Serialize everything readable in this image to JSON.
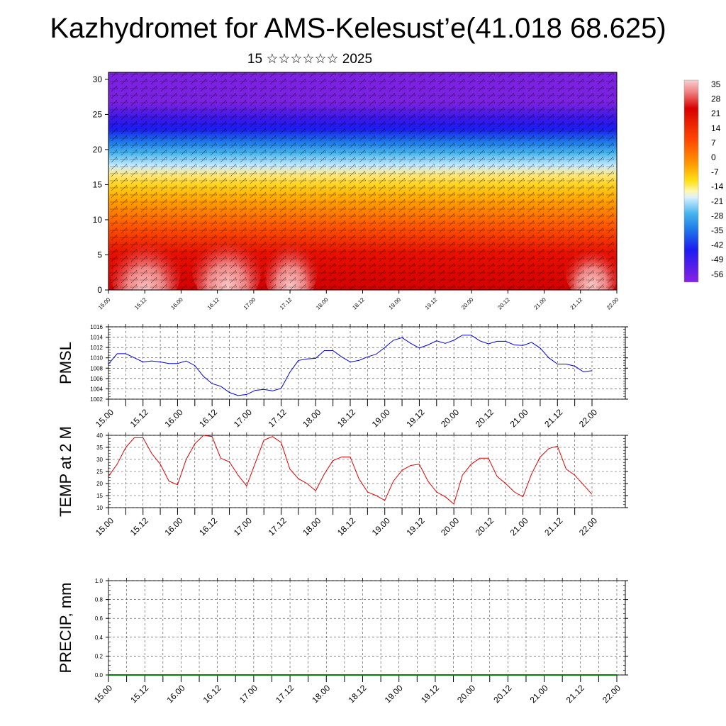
{
  "title": "Kazhydromet for AMS-Kelesust’e(41.018 68.625)",
  "subtitle": "15 ☆☆☆☆☆☆ 2025",
  "time_labels": [
    "15.00",
    "15.12",
    "16.00",
    "16.12",
    "17.00",
    "17.12",
    "18.00",
    "18.12",
    "19.00",
    "19.12",
    "20.00",
    "20.12",
    "21.00",
    "21.12",
    "22.00"
  ],
  "chart_data": [
    {
      "type": "heatmap",
      "name": "cross-section",
      "y_ticks": [
        "0",
        "5",
        "10",
        "15",
        "20",
        "25",
        "30"
      ],
      "ylim": [
        0,
        31
      ],
      "x_ticks": [
        "15.00",
        "15.12",
        "16.00",
        "16.12",
        "17.00",
        "17.12",
        "18.00",
        "18.12",
        "19.00",
        "19.12",
        "20.00",
        "20.12",
        "21.00",
        "21.12",
        "22.00"
      ],
      "colorbar_labels": [
        "35",
        "28",
        "21",
        "14",
        "7",
        "0",
        "-7",
        "-14",
        "-21",
        "-28",
        "-35",
        "-42",
        "-49",
        "-56"
      ],
      "colors": {
        "warm": "#d40000",
        "hot": "#f4a6a6",
        "neutral": "#ffe11a",
        "cool": "#46b4ee",
        "cold": "#1c1cf0",
        "coldest": "#7a22e0"
      },
      "overlay": "wind barbs"
    },
    {
      "type": "line",
      "name": "PMSL",
      "ylabel": "PMSL",
      "ylim": [
        1002,
        1016
      ],
      "y_ticks": [
        "1002",
        "1004",
        "1006",
        "1008",
        "1010",
        "1012",
        "1014",
        "1016"
      ],
      "x_ticks": [
        "15.00",
        "15.12",
        "16.00",
        "16.12",
        "17.00",
        "17.12",
        "18.00",
        "18.12",
        "19.00",
        "19.12",
        "20.00",
        "20.12",
        "21.00",
        "21.12",
        "22.00"
      ],
      "x": [
        0,
        3,
        6,
        9,
        12,
        15,
        18,
        21,
        24,
        27,
        30,
        33,
        36,
        39,
        42,
        45,
        48,
        51,
        54,
        57,
        60,
        63,
        66,
        69,
        72,
        75,
        78,
        81,
        84,
        87,
        90,
        93,
        96,
        99,
        102,
        105,
        108,
        111,
        114,
        117,
        120,
        123,
        126,
        129,
        132,
        135,
        138,
        141,
        144,
        147,
        150,
        153,
        156,
        159,
        162,
        165,
        168
      ],
      "values": [
        1008.8,
        1010.8,
        1010.8,
        1010.0,
        1009.2,
        1009.4,
        1009.2,
        1008.9,
        1008.9,
        1009.4,
        1008.5,
        1006.4,
        1005.0,
        1004.5,
        1003.3,
        1002.7,
        1002.9,
        1003.7,
        1003.9,
        1003.6,
        1004.1,
        1007.2,
        1009.5,
        1009.8,
        1009.9,
        1011.4,
        1011.4,
        1010.2,
        1009.2,
        1009.5,
        1010.2,
        1010.7,
        1012.0,
        1013.4,
        1013.9,
        1012.8,
        1011.9,
        1012.5,
        1013.3,
        1012.8,
        1013.4,
        1014.4,
        1014.4,
        1013.3,
        1012.7,
        1013.2,
        1013.2,
        1012.5,
        1012.4,
        1013.0,
        1011.9,
        1010.0,
        1008.8,
        1008.8,
        1008.4,
        1007.3,
        1007.5
      ],
      "color": "#0000dd"
    },
    {
      "type": "line",
      "name": "TEMP at 2 M",
      "ylabel": "TEMP at 2 M",
      "ylim": [
        10,
        40
      ],
      "y_ticks": [
        "10",
        "15",
        "20",
        "25",
        "30",
        "35",
        "40"
      ],
      "x_ticks": [
        "15.00",
        "15.12",
        "16.00",
        "16.12",
        "17.00",
        "17.12",
        "18.00",
        "18.12",
        "19.00",
        "19.12",
        "20.00",
        "20.12",
        "21.00",
        "21.12",
        "22.00"
      ],
      "x": [
        0,
        3,
        6,
        9,
        12,
        15,
        18,
        21,
        24,
        27,
        30,
        33,
        36,
        39,
        42,
        45,
        48,
        51,
        54,
        57,
        60,
        63,
        66,
        69,
        72,
        75,
        78,
        81,
        84,
        87,
        90,
        93,
        96,
        99,
        102,
        105,
        108,
        111,
        114,
        117,
        120,
        123,
        126,
        129,
        132,
        135,
        138,
        141,
        144,
        147,
        150,
        153,
        156,
        159,
        162,
        165,
        168
      ],
      "values": [
        23.0,
        28.0,
        35.0,
        39.0,
        39.0,
        32.5,
        28.0,
        21.0,
        19.5,
        30.0,
        36.5,
        40.0,
        39.5,
        30.5,
        29.0,
        23.5,
        19.0,
        28.5,
        38.0,
        39.5,
        37.0,
        26.0,
        22.0,
        20.0,
        17.0,
        24.0,
        29.5,
        31.0,
        31.0,
        22.0,
        16.5,
        15.0,
        13.0,
        21.0,
        25.5,
        27.5,
        28.0,
        21.0,
        16.5,
        14.5,
        11.5,
        23.5,
        28.0,
        30.5,
        30.5,
        23.0,
        20.0,
        16.5,
        14.5,
        24.0,
        31.0,
        34.5,
        35.5,
        26.0,
        23.5,
        19.5,
        15.5
      ],
      "color": "#dd0000"
    },
    {
      "type": "line",
      "name": "PRECIP, mm",
      "ylabel": "PRECIP, mm",
      "ylim": [
        0.0,
        1.0
      ],
      "y_ticks": [
        "0.0",
        "0.2",
        "0.4",
        "0.6",
        "0.8",
        "1.0"
      ],
      "x_ticks": [
        "15.00",
        "15.12",
        "16.00",
        "16.12",
        "17.00",
        "17.12",
        "18.00",
        "18.12",
        "19.00",
        "19.12",
        "20.00",
        "20.12",
        "21.00",
        "21.12",
        "22.00"
      ],
      "x": [
        0,
        168
      ],
      "values": [
        0.0,
        0.0
      ],
      "color": "#008000"
    }
  ]
}
